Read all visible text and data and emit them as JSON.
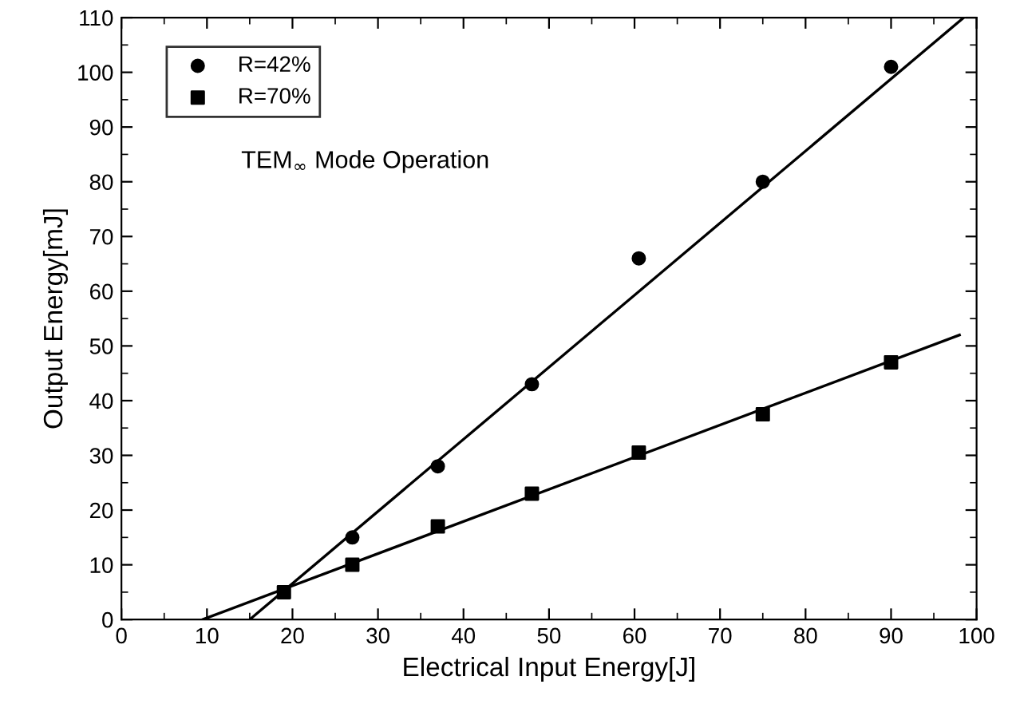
{
  "chart_data": {
    "type": "scatter",
    "xlabel": "Electrical Input Energy[J]",
    "ylabel": "Output Energy[mJ]",
    "xlim": [
      0,
      100
    ],
    "ylim": [
      0,
      110
    ],
    "xticks": [
      0,
      10,
      20,
      30,
      40,
      50,
      60,
      70,
      80,
      90,
      100
    ],
    "yticks": [
      0,
      10,
      20,
      30,
      40,
      50,
      60,
      70,
      80,
      90,
      100,
      110
    ],
    "grid": false,
    "legend": "top left",
    "annotations": [
      "TEM$_{∞}$ Mode Operation"
    ],
    "series": [
      {
        "name": "R=42%",
        "color": "#000000",
        "marker": "circle",
        "x": [
          27,
          37,
          48,
          60.5,
          75,
          90
        ],
        "values": [
          15,
          28,
          43,
          66,
          80,
          101
        ]
      },
      {
        "name": "R=70%",
        "color": "#000000",
        "marker": "square",
        "x": [
          19,
          27,
          37,
          48,
          60.5,
          75,
          90
        ],
        "values": [
          5,
          10,
          17,
          23,
          30.5,
          37.5,
          47
        ]
      },
      {
        "type": "line",
        "color": "#000000",
        "marker": "none",
        "x": [
          15,
          98.5
        ],
        "values": [
          0,
          110
        ]
      },
      {
        "type": "line",
        "color": "#000000",
        "marker": "none",
        "x": [
          9.5,
          98
        ],
        "values": [
          0,
          52
        ]
      }
    ]
  }
}
